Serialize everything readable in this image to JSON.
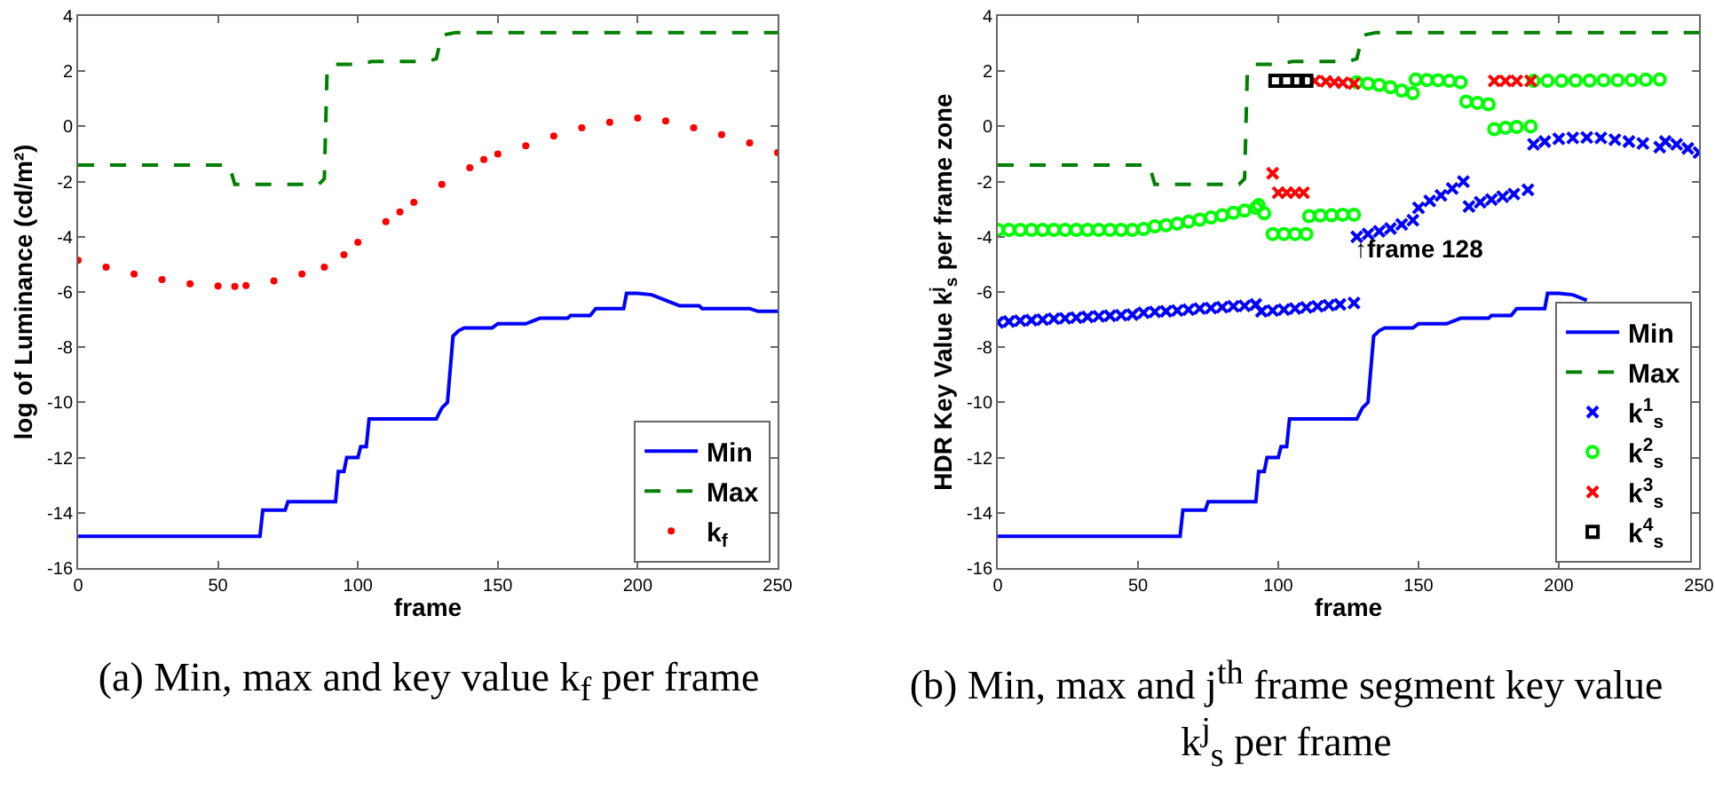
{
  "chart_data": [
    {
      "type": "line",
      "title": "(a) Min, max and key value k$_{f}$ per frame",
      "xlabel": "frame",
      "ylabel": "log of Luminance (cd/m²)",
      "xlim": [
        0,
        250
      ],
      "xticks": [
        0,
        50,
        100,
        150,
        200,
        250
      ],
      "ylim": [
        -16,
        4
      ],
      "yticks": [
        -16,
        -14,
        -12,
        -10,
        -8,
        -6,
        -4,
        -2,
        0,
        2,
        4
      ],
      "grid": false,
      "legend": "bottom right",
      "series": [
        {
          "name": "Min",
          "color": "#0000ff",
          "type": "line",
          "line_style": "solid",
          "x": [
            0,
            65,
            66,
            74,
            75,
            92,
            93,
            95,
            96,
            100,
            101,
            103,
            104,
            128,
            130,
            132,
            134,
            136,
            138,
            148,
            150,
            160,
            165,
            175,
            176,
            183,
            185,
            195,
            196,
            200,
            205,
            210,
            215,
            222,
            223,
            240,
            243,
            250
          ],
          "values": [
            -14.85,
            -14.85,
            -13.9,
            -13.9,
            -13.6,
            -13.6,
            -12.5,
            -12.5,
            -12.0,
            -12.0,
            -11.6,
            -11.6,
            -10.6,
            -10.6,
            -10.2,
            -10.0,
            -7.6,
            -7.4,
            -7.3,
            -7.3,
            -7.15,
            -7.15,
            -6.95,
            -6.95,
            -6.85,
            -6.85,
            -6.6,
            -6.6,
            -6.05,
            -6.05,
            -6.1,
            -6.3,
            -6.5,
            -6.5,
            -6.6,
            -6.6,
            -6.7,
            -6.7
          ]
        },
        {
          "name": "Max",
          "color": "#008000",
          "type": "line",
          "line_style": "dashed",
          "x": [
            0,
            54,
            56,
            86,
            88,
            89,
            92,
            100,
            105,
            125,
            128,
            130,
            135,
            250
          ],
          "values": [
            -1.4,
            -1.4,
            -2.1,
            -2.1,
            -1.9,
            2.1,
            2.25,
            2.25,
            2.35,
            2.35,
            2.45,
            3.3,
            3.4,
            3.4
          ]
        },
        {
          "name": "k$_{f}$",
          "color": "#ff0000",
          "type": "scatter",
          "marker": "circle",
          "x": [
            0,
            10,
            20,
            30,
            40,
            50,
            56,
            60,
            70,
            80,
            88,
            95,
            100,
            110,
            115,
            120,
            130,
            140,
            145,
            150,
            160,
            170,
            180,
            190,
            200,
            210,
            220,
            230,
            240,
            250
          ],
          "values": [
            -4.85,
            -5.1,
            -5.35,
            -5.55,
            -5.7,
            -5.78,
            -5.8,
            -5.77,
            -5.6,
            -5.35,
            -5.1,
            -4.65,
            -4.2,
            -3.45,
            -3.1,
            -2.75,
            -2.1,
            -1.5,
            -1.2,
            -1.0,
            -0.7,
            -0.35,
            -0.05,
            0.15,
            0.3,
            0.2,
            -0.05,
            -0.3,
            -0.6,
            -0.95
          ]
        }
      ]
    },
    {
      "type": "line",
      "title": "(b) Min, max and j$^{th}$ frame segment key value k$^{j}$$_{s}$ per frame",
      "xlabel": "frame",
      "ylabel": "HDR Key Value k$^{j}$$_{s}$ per frame zone",
      "xlim": [
        0,
        250
      ],
      "xticks": [
        0,
        50,
        100,
        150,
        200,
        250
      ],
      "ylim": [
        -16,
        4
      ],
      "yticks": [
        -16,
        -14,
        -12,
        -10,
        -8,
        -6,
        -4,
        -2,
        0,
        2,
        4
      ],
      "grid": false,
      "legend": "bottom right",
      "annotations": [
        "↑frame 128"
      ],
      "series": [
        {
          "name": "Min",
          "color": "#0000ff",
          "type": "line",
          "line_style": "solid",
          "x": [
            0,
            65,
            66,
            74,
            75,
            92,
            93,
            95,
            96,
            100,
            101,
            103,
            104,
            128,
            130,
            132,
            134,
            136,
            138,
            148,
            150,
            160,
            165,
            175,
            176,
            183,
            185,
            195,
            196,
            200,
            205,
            210
          ],
          "values": [
            -14.85,
            -14.85,
            -13.9,
            -13.9,
            -13.6,
            -13.6,
            -12.5,
            -12.5,
            -12.0,
            -12.0,
            -11.6,
            -11.6,
            -10.6,
            -10.6,
            -10.2,
            -10.0,
            -7.6,
            -7.4,
            -7.3,
            -7.3,
            -7.15,
            -7.15,
            -6.95,
            -6.95,
            -6.85,
            -6.85,
            -6.6,
            -6.6,
            -6.05,
            -6.05,
            -6.1,
            -6.3
          ]
        },
        {
          "name": "Max",
          "color": "#008000",
          "type": "line",
          "line_style": "dashed",
          "x": [
            0,
            54,
            56,
            86,
            88,
            89,
            92,
            100,
            105,
            125,
            128,
            130,
            135,
            250
          ],
          "values": [
            -1.4,
            -1.4,
            -2.1,
            -2.1,
            -1.9,
            2.1,
            2.25,
            2.25,
            2.35,
            2.35,
            2.45,
            3.3,
            3.4,
            3.4
          ]
        },
        {
          "name": "k$^{1}$$_{s}$",
          "color": "#0000ff",
          "type": "scatter",
          "marker": "cross",
          "x": [
            0,
            4,
            8,
            12,
            16,
            20,
            24,
            28,
            32,
            36,
            40,
            44,
            48,
            52,
            56,
            60,
            64,
            68,
            72,
            76,
            80,
            84,
            88,
            92,
            94,
            98,
            102,
            106,
            110,
            114,
            118,
            122,
            127,
            128,
            132,
            136,
            140,
            144,
            148,
            150,
            154,
            158,
            162,
            166,
            168,
            172,
            176,
            180,
            184,
            189,
            191,
            195,
            200,
            205,
            210,
            215,
            220,
            225,
            230,
            236,
            238,
            242,
            246,
            250
          ],
          "values": [
            -7.1,
            -7.07,
            -7.04,
            -7.02,
            -7.0,
            -6.97,
            -6.95,
            -6.93,
            -6.9,
            -6.88,
            -6.86,
            -6.84,
            -6.82,
            -6.75,
            -6.72,
            -6.7,
            -6.67,
            -6.64,
            -6.6,
            -6.58,
            -6.55,
            -6.52,
            -6.5,
            -6.45,
            -6.7,
            -6.67,
            -6.64,
            -6.6,
            -6.56,
            -6.52,
            -6.48,
            -6.45,
            -6.4,
            -4.0,
            -3.9,
            -3.8,
            -3.7,
            -3.55,
            -3.4,
            -2.95,
            -2.7,
            -2.5,
            -2.25,
            -2.0,
            -2.9,
            -2.75,
            -2.65,
            -2.55,
            -2.45,
            -2.3,
            -0.65,
            -0.55,
            -0.45,
            -0.42,
            -0.4,
            -0.42,
            -0.48,
            -0.55,
            -0.62,
            -0.75,
            -0.55,
            -0.65,
            -0.8,
            -0.95
          ]
        },
        {
          "name": "k$^{2}$$_{s}$",
          "color": "#00ff00",
          "type": "scatter",
          "marker": "circle",
          "x": [
            0,
            4,
            8,
            12,
            16,
            20,
            24,
            28,
            32,
            36,
            40,
            44,
            48,
            52,
            56,
            60,
            64,
            68,
            72,
            76,
            80,
            84,
            88,
            92,
            93,
            95,
            98,
            102,
            106,
            110,
            111,
            115,
            119,
            123,
            127,
            128,
            132,
            136,
            140,
            144,
            148,
            149,
            153,
            157,
            161,
            165,
            167,
            171,
            175,
            177,
            181,
            185,
            190,
            191,
            196,
            201,
            206,
            211,
            216,
            221,
            226,
            231,
            236
          ],
          "values": [
            -3.75,
            -3.75,
            -3.75,
            -3.75,
            -3.75,
            -3.75,
            -3.75,
            -3.75,
            -3.75,
            -3.75,
            -3.75,
            -3.75,
            -3.75,
            -3.72,
            -3.62,
            -3.58,
            -3.52,
            -3.45,
            -3.38,
            -3.3,
            -3.22,
            -3.13,
            -3.05,
            -2.95,
            -2.85,
            -3.15,
            -3.9,
            -3.9,
            -3.9,
            -3.9,
            -3.25,
            -3.23,
            -3.22,
            -3.2,
            -3.2,
            1.6,
            1.55,
            1.5,
            1.42,
            1.3,
            1.2,
            1.7,
            1.68,
            1.67,
            1.65,
            1.6,
            0.9,
            0.85,
            0.8,
            -0.1,
            -0.05,
            -0.02,
            0.0,
            1.65,
            1.65,
            1.65,
            1.66,
            1.66,
            1.67,
            1.67,
            1.68,
            1.69,
            1.7
          ]
        },
        {
          "name": "k$^{3}$$_{s}$",
          "color": "#ff0000",
          "type": "scatter",
          "marker": "cross",
          "x": [
            98,
            100,
            103,
            106,
            109,
            113,
            117,
            120,
            123,
            127,
            177,
            181,
            185,
            190
          ],
          "values": [
            -1.7,
            -2.4,
            -2.4,
            -2.4,
            -2.4,
            1.65,
            1.63,
            1.6,
            1.58,
            1.55,
            1.65,
            1.65,
            1.65,
            1.65
          ]
        },
        {
          "name": "k$^{4}$$_{s}$",
          "color": "#000000",
          "type": "scatter",
          "marker": "square",
          "x": [
            99,
            103,
            107,
            110
          ],
          "values": [
            1.65,
            1.65,
            1.65,
            1.65
          ]
        }
      ]
    }
  ]
}
